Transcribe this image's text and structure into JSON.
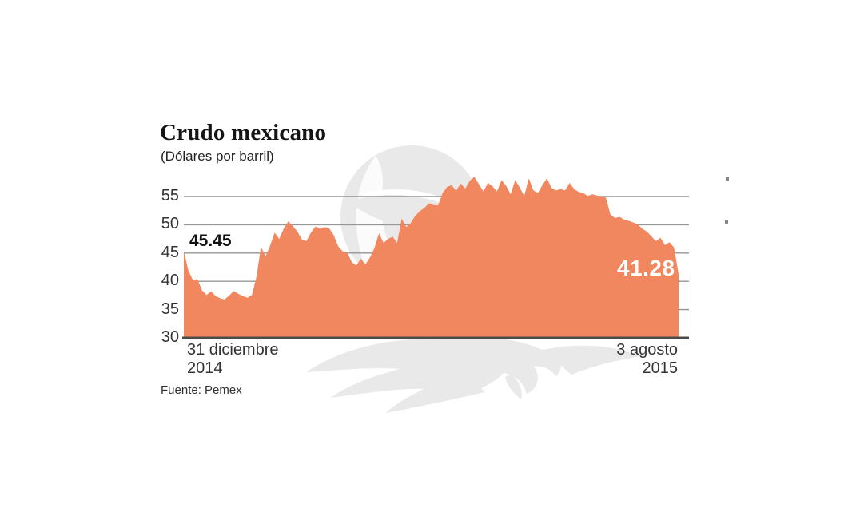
{
  "header": {
    "title": "Crudo mexicano",
    "subtitle": "(Dólares por barril)"
  },
  "annotations": {
    "start_value": "45.45",
    "end_value": "41.28"
  },
  "x_axis": {
    "start_line1": "31 diciembre",
    "start_line2": "2014",
    "end_line1": "3 agosto",
    "end_line2": "2015"
  },
  "y_axis": {
    "ticks": [
      55,
      50,
      45,
      40,
      35,
      30
    ]
  },
  "source": "Fuente: Pemex",
  "colors": {
    "area": "#F0875F",
    "baseline": "#4A4A4A",
    "gridline": "#969696",
    "watermark": "#E9E9E9",
    "watermark_inner": "#FFFFFF",
    "title_text": "#141414",
    "axis_text": "#333333",
    "end_label_text": "#FFFFFF"
  },
  "chart_data": {
    "type": "area",
    "title": "Crudo mexicano",
    "subtitle": "(Dólares por barril)",
    "ylabel": "Dólares por barril",
    "xlabel": "",
    "x_start": "31 diciembre 2014",
    "x_end": "3 agosto 2015",
    "ylim": [
      30,
      60
    ],
    "gridlines": [
      55,
      50,
      45,
      40,
      35
    ],
    "grid": true,
    "legend_position": "none",
    "first_value": 45.45,
    "last_value": 41.28,
    "values": [
      45.45,
      41.9,
      40.2,
      40.4,
      38.4,
      37.6,
      38.2,
      37.4,
      37.0,
      36.8,
      37.5,
      38.3,
      37.8,
      37.4,
      37.1,
      37.6,
      40.8,
      46.1,
      44.4,
      46.3,
      48.6,
      47.5,
      49.3,
      50.6,
      49.8,
      48.8,
      47.4,
      47.1,
      48.6,
      49.7,
      49.3,
      49.6,
      49.4,
      48.2,
      46.2,
      45.3,
      45.1,
      43.4,
      42.8,
      44.0,
      43.0,
      44.2,
      45.9,
      48.5,
      46.8,
      47.5,
      47.9,
      46.8,
      51.1,
      49.6,
      50.3,
      51.6,
      52.4,
      53.0,
      53.8,
      53.5,
      53.4,
      55.6,
      56.7,
      57.0,
      56.0,
      57.3,
      56.4,
      57.8,
      58.5,
      57.2,
      55.9,
      57.4,
      56.8,
      55.9,
      57.9,
      56.9,
      55.4,
      57.9,
      56.6,
      55.1,
      58.2,
      56.1,
      55.6,
      57.0,
      58.2,
      56.5,
      56.1,
      56.3,
      56.1,
      57.4,
      56.3,
      55.8,
      55.6,
      55.1,
      55.4,
      55.2,
      55.0,
      54.8,
      51.8,
      51.2,
      51.4,
      50.9,
      50.7,
      50.4,
      50.1,
      49.3,
      48.8,
      48.0,
      47.1,
      47.7,
      46.4,
      46.9,
      46.0,
      41.28
    ]
  }
}
